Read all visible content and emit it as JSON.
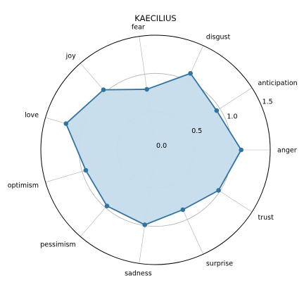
{
  "chart_data": {
    "type": "radar",
    "title": "KAECILIUS",
    "categories": [
      "anger",
      "anticipation",
      "disgust",
      "fear",
      "joy",
      "love",
      "optimism",
      "pessimism",
      "sadness",
      "surprise",
      "trust"
    ],
    "series": [
      {
        "values": [
          1.12,
          0.95,
          1.1,
          0.8,
          1.04,
          1.22,
          0.95,
          0.97,
          0.99,
          0.86,
          0.98
        ]
      }
    ],
    "r_range": [
      0,
      1.5
    ],
    "r_ticks": [
      "0.0",
      "0.5",
      "1.0",
      "1.5"
    ],
    "grid": true,
    "colors": {
      "line": "#3274a1",
      "fill": "#c5dcec",
      "grid": "#b0b0b0",
      "frame": "#000000"
    }
  }
}
